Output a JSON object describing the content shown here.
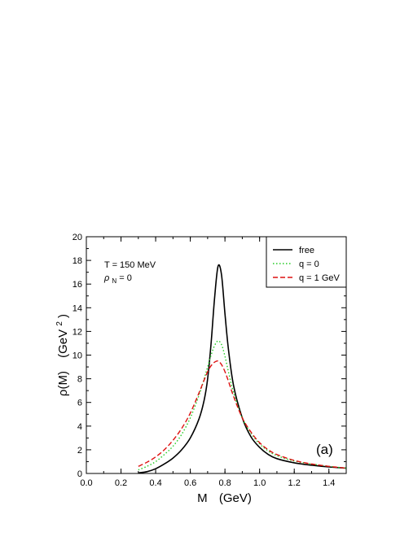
{
  "chart_data": {
    "type": "line",
    "xlabel": "M",
    "xunit": "(GeV)",
    "ylabel": "ρ(M)",
    "yunit_prefix": "(GeV",
    "yunit_exp": "2",
    "yunit_suffix": ")",
    "xlim": [
      0.0,
      1.5
    ],
    "ylim": [
      0,
      20
    ],
    "xticks": [
      0.0,
      0.2,
      0.4,
      0.6,
      0.8,
      1.0,
      1.2,
      1.4
    ],
    "xtick_labels": [
      "0.0",
      "0.2",
      "0.4",
      "0.6",
      "0.8",
      "1.0",
      "1.2",
      "1.4"
    ],
    "yticks": [
      0,
      2,
      4,
      6,
      8,
      10,
      12,
      14,
      16,
      18,
      20
    ],
    "ytick_labels": [
      "0",
      "2",
      "4",
      "6",
      "8",
      "10",
      "12",
      "14",
      "16",
      "18",
      "20"
    ],
    "grid": false,
    "legend_position": "top-right",
    "annotations": {
      "temperature": "T = 150 MeV",
      "density_symbol": "ρ",
      "density_sub": "N",
      "density_value": " = 0",
      "panel": "(a)"
    },
    "series": [
      {
        "name": "free",
        "color": "#000000",
        "dash": "solid",
        "x": [
          0.3,
          0.35,
          0.4,
          0.45,
          0.5,
          0.55,
          0.6,
          0.65,
          0.68,
          0.7,
          0.72,
          0.74,
          0.76,
          0.78,
          0.8,
          0.82,
          0.85,
          0.9,
          0.95,
          1.0,
          1.05,
          1.1,
          1.2,
          1.3,
          1.4,
          1.5
        ],
        "y": [
          0.05,
          0.15,
          0.4,
          0.8,
          1.3,
          2.0,
          3.0,
          4.6,
          6.2,
          8.0,
          11.0,
          14.8,
          17.5,
          16.8,
          13.5,
          10.5,
          7.4,
          4.7,
          3.1,
          2.2,
          1.6,
          1.25,
          0.9,
          0.7,
          0.55,
          0.45
        ]
      },
      {
        "name": "q = 0",
        "color": "#22cc22",
        "dash": "dotted",
        "x": [
          0.3,
          0.35,
          0.4,
          0.45,
          0.5,
          0.55,
          0.6,
          0.65,
          0.68,
          0.7,
          0.72,
          0.74,
          0.76,
          0.78,
          0.8,
          0.82,
          0.85,
          0.9,
          0.95,
          1.0,
          1.05,
          1.1,
          1.2,
          1.3,
          1.4,
          1.5
        ],
        "y": [
          0.3,
          0.6,
          1.0,
          1.6,
          2.3,
          3.3,
          4.7,
          6.6,
          8.0,
          9.0,
          10.0,
          10.8,
          11.2,
          10.9,
          9.9,
          8.6,
          6.8,
          4.7,
          3.4,
          2.5,
          1.9,
          1.5,
          1.05,
          0.8,
          0.6,
          0.45
        ]
      },
      {
        "name": "q = 1 GeV",
        "color": "#dd1111",
        "dash": "dashed",
        "x": [
          0.3,
          0.35,
          0.4,
          0.45,
          0.5,
          0.55,
          0.6,
          0.65,
          0.68,
          0.7,
          0.72,
          0.74,
          0.76,
          0.78,
          0.8,
          0.82,
          0.85,
          0.9,
          0.95,
          1.0,
          1.05,
          1.1,
          1.2,
          1.3,
          1.4,
          1.5
        ],
        "y": [
          0.6,
          0.95,
          1.4,
          2.0,
          2.8,
          3.8,
          5.1,
          6.8,
          7.9,
          8.6,
          9.1,
          9.4,
          9.5,
          9.2,
          8.6,
          7.8,
          6.5,
          4.7,
          3.5,
          2.6,
          2.0,
          1.6,
          1.1,
          0.8,
          0.6,
          0.45
        ]
      }
    ]
  }
}
